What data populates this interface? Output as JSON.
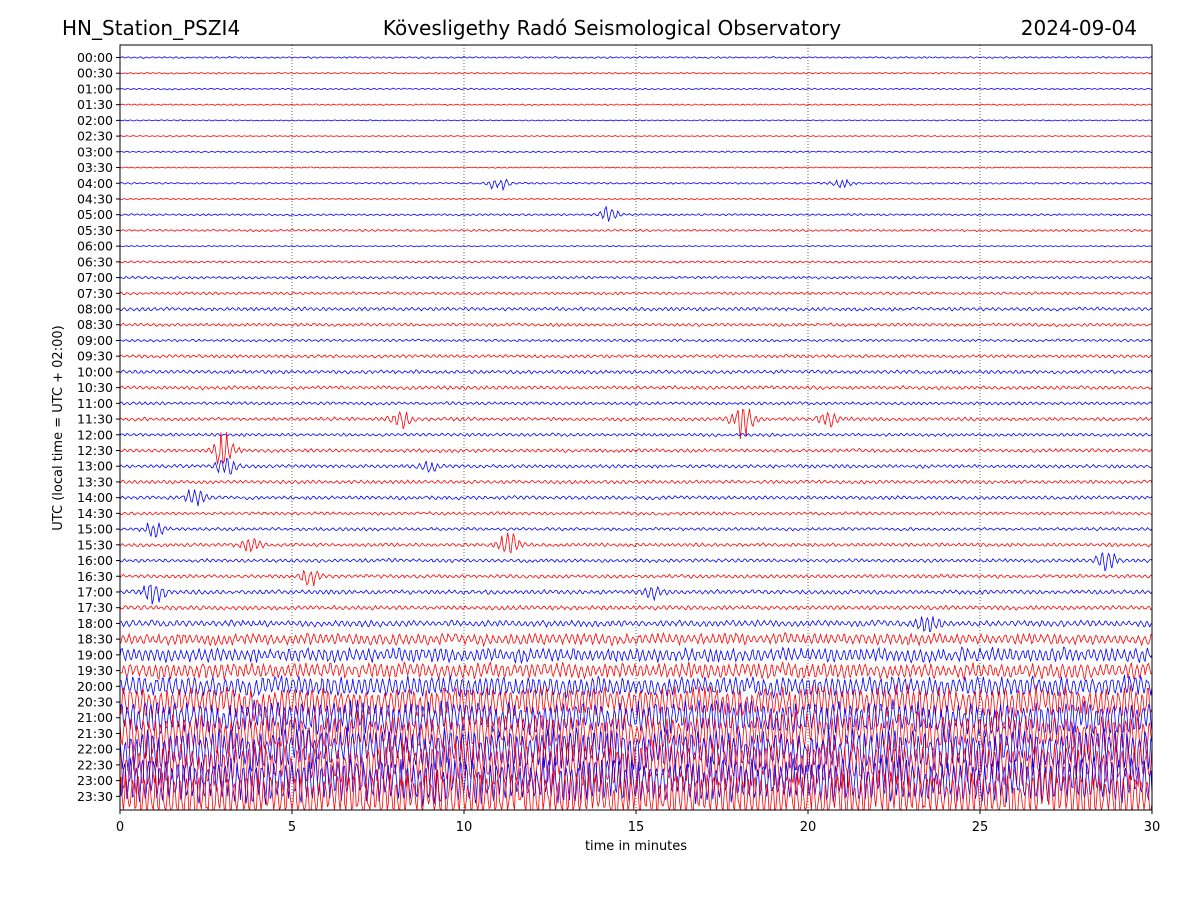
{
  "header": {
    "station": "HN_Station_PSZI4",
    "observatory": "Kövesligethy Radó Seismological Observatory",
    "date": "2024-09-04"
  },
  "chart_data": {
    "type": "line",
    "title": "Kövesligethy Radó Seismological Observatory",
    "station": "HN_Station_PSZI4",
    "date": "2024-09-04",
    "xlabel": "time in minutes",
    "ylabel": "UTC (local time = UTC + 02:00)",
    "xlim": [
      0,
      30
    ],
    "xticks": [
      0,
      5,
      10,
      15,
      20,
      25,
      30
    ],
    "grid": "vertical dotted lines at 5-minute marks",
    "row_colors": [
      "#0000ff",
      "#ff0000"
    ],
    "rows": [
      "00:00",
      "00:30",
      "01:00",
      "01:30",
      "02:00",
      "02:30",
      "03:00",
      "03:30",
      "04:00",
      "04:30",
      "05:00",
      "05:30",
      "06:00",
      "06:30",
      "07:00",
      "07:30",
      "08:00",
      "08:30",
      "09:00",
      "09:30",
      "10:00",
      "10:30",
      "11:00",
      "11:30",
      "12:00",
      "12:30",
      "13:00",
      "13:30",
      "14:00",
      "14:30",
      "15:00",
      "15:30",
      "16:00",
      "16:30",
      "17:00",
      "17:30",
      "18:00",
      "18:30",
      "19:00",
      "19:30",
      "20:00",
      "20:30",
      "21:00",
      "21:30",
      "22:00",
      "22:30",
      "23:00",
      "23:30"
    ],
    "relative_noise_level": [
      0.12,
      0.1,
      0.1,
      0.1,
      0.08,
      0.07,
      0.1,
      0.08,
      0.12,
      0.1,
      0.14,
      0.15,
      0.08,
      0.15,
      0.18,
      0.2,
      0.25,
      0.22,
      0.18,
      0.22,
      0.25,
      0.25,
      0.22,
      0.25,
      0.22,
      0.25,
      0.25,
      0.25,
      0.25,
      0.22,
      0.22,
      0.25,
      0.25,
      0.25,
      0.3,
      0.3,
      0.45,
      0.8,
      1.0,
      1.1,
      1.4,
      2.2,
      2.4,
      2.8,
      3.0,
      3.2,
      3.3,
      3.4
    ],
    "events": [
      {
        "row": "04:00",
        "minute": 11.0,
        "amplitude": 0.5
      },
      {
        "row": "04:00",
        "minute": 21.0,
        "amplitude": 0.35
      },
      {
        "row": "05:00",
        "minute": 14.2,
        "amplitude": 0.6
      },
      {
        "row": "11:30",
        "minute": 8.2,
        "amplitude": 0.7
      },
      {
        "row": "11:30",
        "minute": 18.1,
        "amplitude": 1.3
      },
      {
        "row": "11:30",
        "minute": 20.6,
        "amplitude": 0.5
      },
      {
        "row": "12:30",
        "minute": 3.0,
        "amplitude": 1.3
      },
      {
        "row": "13:00",
        "minute": 3.1,
        "amplitude": 0.6
      },
      {
        "row": "13:00",
        "minute": 9.0,
        "amplitude": 0.4
      },
      {
        "row": "14:00",
        "minute": 2.2,
        "amplitude": 0.6
      },
      {
        "row": "15:00",
        "minute": 1.0,
        "amplitude": 0.6
      },
      {
        "row": "15:30",
        "minute": 3.8,
        "amplitude": 0.6
      },
      {
        "row": "15:30",
        "minute": 11.3,
        "amplitude": 0.8
      },
      {
        "row": "16:00",
        "minute": 28.7,
        "amplitude": 0.8
      },
      {
        "row": "16:30",
        "minute": 5.5,
        "amplitude": 0.6
      },
      {
        "row": "17:00",
        "minute": 1.0,
        "amplitude": 0.9
      },
      {
        "row": "17:00",
        "minute": 15.5,
        "amplitude": 0.4
      },
      {
        "row": "18:00",
        "minute": 23.5,
        "amplitude": 0.6
      }
    ]
  }
}
